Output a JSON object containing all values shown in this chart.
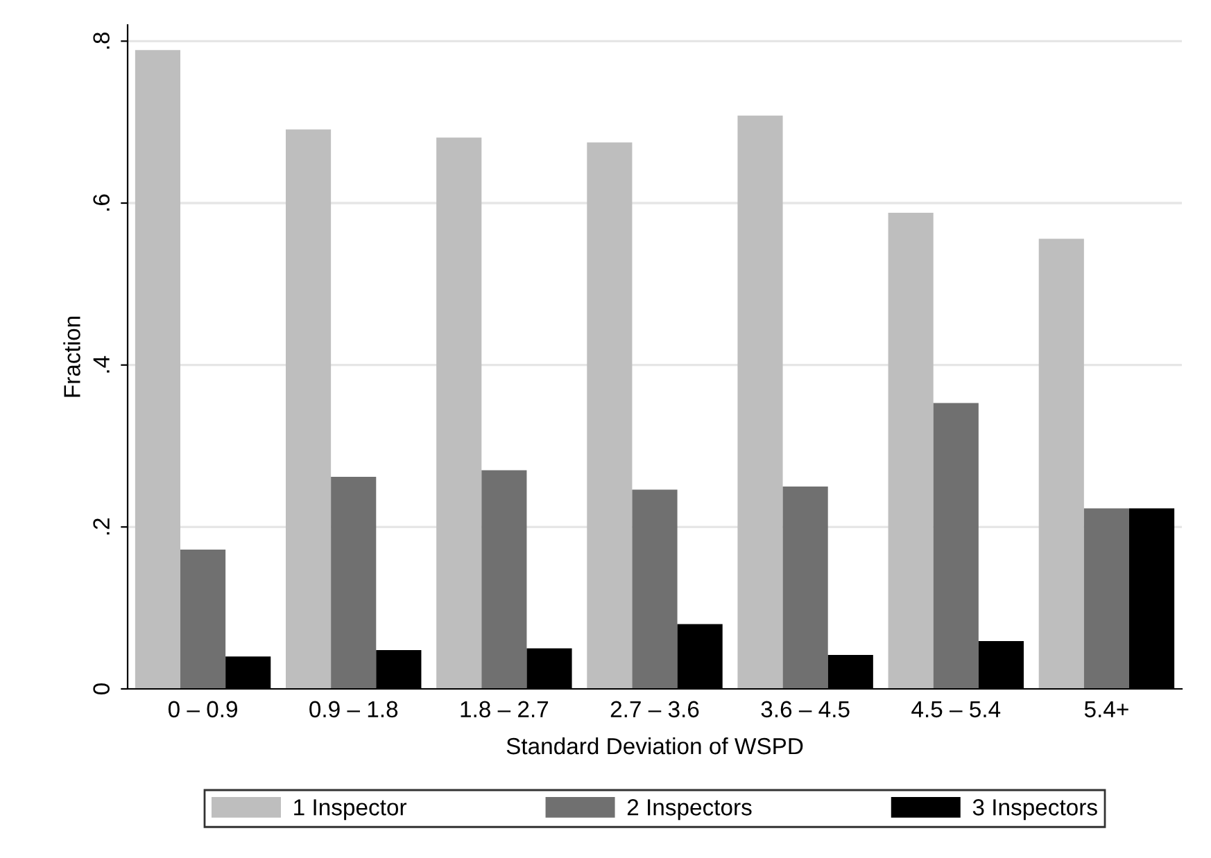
{
  "chart_data": {
    "type": "bar",
    "xlabel": "Standard Deviation of WSPD",
    "ylabel": "Fraction",
    "categories": [
      "0 – 0.9",
      "0.9 – 1.8",
      "1.8 – 2.7",
      "2.7 – 3.6",
      "3.6 – 4.5",
      "4.5 – 5.4",
      "5.4+"
    ],
    "series": [
      {
        "name": "1 Inspector",
        "color": "#bebebe",
        "values": [
          0.789,
          0.691,
          0.681,
          0.675,
          0.708,
          0.588,
          0.556
        ]
      },
      {
        "name": "2 Inspectors",
        "color": "#707070",
        "values": [
          0.172,
          0.262,
          0.27,
          0.246,
          0.25,
          0.353,
          0.223
        ]
      },
      {
        "name": "3 Inspectors",
        "color": "#000000",
        "values": [
          0.04,
          0.048,
          0.05,
          0.08,
          0.042,
          0.059,
          0.223
        ]
      }
    ],
    "ylim": [
      0,
      0.82
    ],
    "yticks": [
      {
        "value": 0,
        "label": "0"
      },
      {
        "value": 0.2,
        "label": ".2"
      },
      {
        "value": 0.4,
        "label": ".4"
      },
      {
        "value": 0.6,
        "label": ".6"
      },
      {
        "value": 0.8,
        "label": ".8"
      }
    ],
    "grid": "y",
    "legend": "bottom"
  }
}
